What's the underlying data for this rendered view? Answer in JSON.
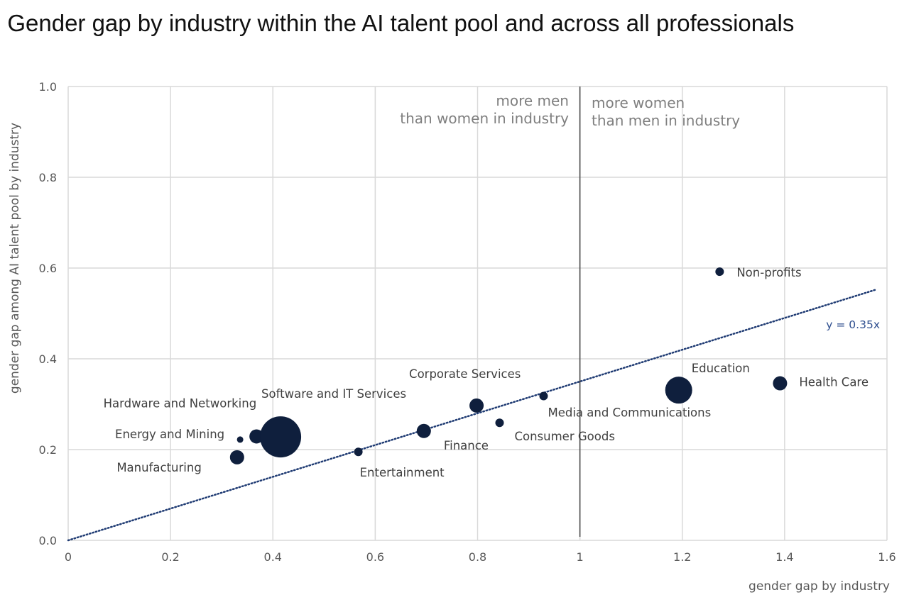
{
  "chart_data": {
    "type": "scatter",
    "title": ": Gender gap by industry within the AI talent pool and across all professionals",
    "xlabel": "gender gap by industry",
    "ylabel": "gender gap among AI talent pool by industry",
    "xlim": [
      0,
      1.6
    ],
    "ylim": [
      0,
      1.0
    ],
    "x_ticks": [
      "0",
      "0.2",
      "0.4",
      "0.6",
      "0.8",
      "1",
      "1.2",
      "1.4",
      "1.6"
    ],
    "y_ticks": [
      "0.0",
      "0.2",
      "0.4",
      "0.6",
      "0.8",
      "1.0"
    ],
    "grid": true,
    "marker_color": "#0f1f3d",
    "points": [
      {
        "label": "Manufacturing",
        "x": 0.33,
        "y": 0.183,
        "size": "medium"
      },
      {
        "label": "Energy and Mining",
        "x": 0.336,
        "y": 0.222,
        "size": "tiny"
      },
      {
        "label": "Hardware and Networking",
        "x": 0.368,
        "y": 0.229,
        "size": "medium"
      },
      {
        "label": "Software and IT Services",
        "x": 0.415,
        "y": 0.228,
        "size": "xlarge"
      },
      {
        "label": "Entertainment",
        "x": 0.567,
        "y": 0.195,
        "size": "small"
      },
      {
        "label": "Finance",
        "x": 0.695,
        "y": 0.241,
        "size": "medium"
      },
      {
        "label": "Corporate Services",
        "x": 0.798,
        "y": 0.297,
        "size": "medium"
      },
      {
        "label": "Consumer Goods",
        "x": 0.843,
        "y": 0.259,
        "size": "small"
      },
      {
        "label": "Media and Communications",
        "x": 0.929,
        "y": 0.318,
        "size": "small"
      },
      {
        "label": "Education",
        "x": 1.193,
        "y": 0.331,
        "size": "large"
      },
      {
        "label": "Non-profits",
        "x": 1.273,
        "y": 0.592,
        "size": "small"
      },
      {
        "label": "Health Care",
        "x": 1.391,
        "y": 0.346,
        "size": "medium"
      }
    ],
    "trendline": {
      "label": "y = 0.35x",
      "slope": 0.35,
      "x_end": 1.58
    },
    "divider_x": 1,
    "regions": {
      "left": [
        "more men",
        "than women in industry"
      ],
      "right": [
        "more women",
        "than men in industry"
      ]
    }
  }
}
